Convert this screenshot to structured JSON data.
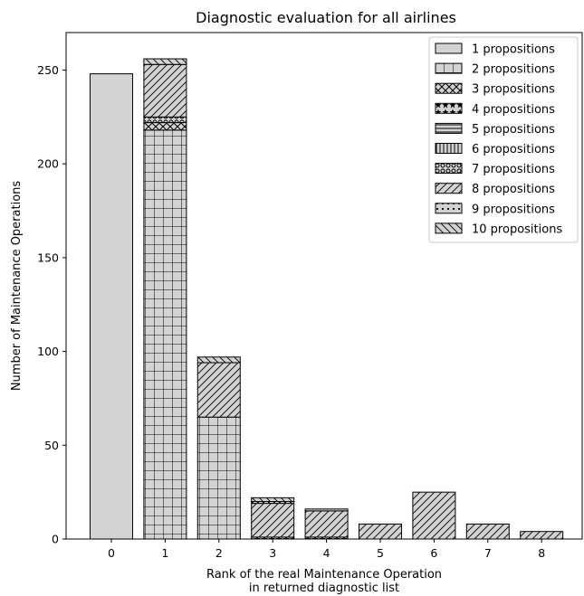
{
  "chart_data": {
    "type": "bar",
    "stacked": true,
    "title": "Diagnostic evaluation for all airlines",
    "xlabel_lines": [
      "Rank of the real Maintenance Operation",
      "in returned diagnostic list"
    ],
    "ylabel": "Number of Maintenance Operations",
    "categories": [
      "0",
      "1",
      "2",
      "3",
      "4",
      "5",
      "6",
      "7",
      "8"
    ],
    "ylim": [
      0,
      270
    ],
    "yticks": [
      0,
      50,
      100,
      150,
      200,
      250
    ],
    "grid": false,
    "legend_position": "top-right",
    "series": [
      {
        "name": "1 propositions",
        "pattern": "none",
        "values": [
          248,
          0,
          0,
          0,
          0,
          0,
          0,
          0,
          0
        ]
      },
      {
        "name": "2 propositions",
        "pattern": "grid",
        "values": [
          0,
          218,
          65,
          0,
          0,
          0,
          0,
          0,
          0
        ]
      },
      {
        "name": "3 propositions",
        "pattern": "xhatch",
        "values": [
          0,
          4,
          0,
          0,
          0,
          0,
          0,
          0,
          0
        ]
      },
      {
        "name": "4 propositions",
        "pattern": "stars",
        "values": [
          0,
          0,
          0,
          1,
          1,
          0,
          0,
          0,
          0
        ]
      },
      {
        "name": "5 propositions",
        "pattern": "hline",
        "values": [
          0,
          0,
          0,
          0,
          0,
          0,
          0,
          0,
          0
        ]
      },
      {
        "name": "6 propositions",
        "pattern": "vline",
        "values": [
          0,
          0,
          0,
          0,
          0,
          0,
          0,
          0,
          0
        ]
      },
      {
        "name": "7 propositions",
        "pattern": "circles",
        "values": [
          0,
          3,
          0,
          0,
          0,
          0,
          0,
          0,
          0
        ]
      },
      {
        "name": "8 propositions",
        "pattern": "fdiag",
        "values": [
          0,
          28,
          29,
          18,
          14,
          8,
          25,
          8,
          4
        ]
      },
      {
        "name": "9 propositions",
        "pattern": "dots",
        "values": [
          0,
          0,
          0,
          1,
          1,
          0,
          0,
          0,
          0
        ]
      },
      {
        "name": "10 propositions",
        "pattern": "bdiag",
        "values": [
          0,
          3,
          3,
          2,
          0,
          0,
          0,
          0,
          0
        ]
      }
    ]
  }
}
